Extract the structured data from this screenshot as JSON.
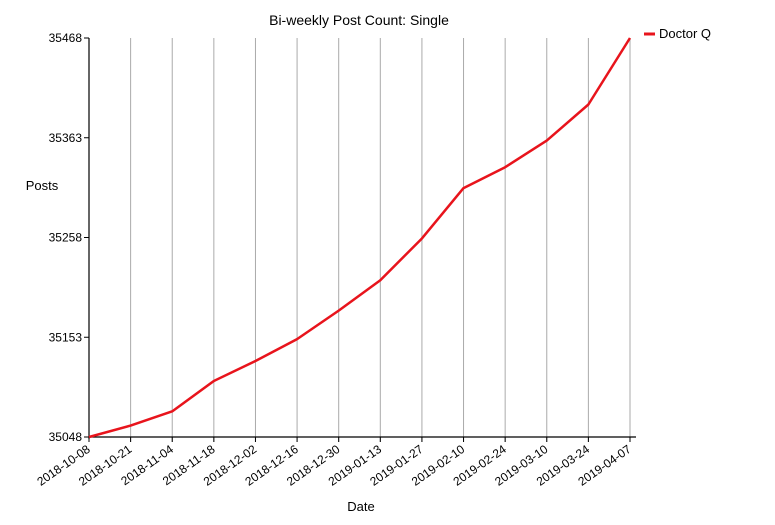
{
  "chart_data": {
    "type": "line",
    "title": "Bi-weekly Post Count: Single",
    "xlabel": "Date",
    "ylabel": "Posts",
    "categories": [
      "2018-10-08",
      "2018-10-21",
      "2018-11-04",
      "2018-11-18",
      "2018-12-02",
      "2018-12-16",
      "2018-12-30",
      "2019-01-13",
      "2019-01-27",
      "2019-02-10",
      "2019-02-24",
      "2019-03-10",
      "2019-03-24",
      "2019-04-07"
    ],
    "yticks": [
      "35048",
      "35153",
      "35258",
      "35363",
      "35468"
    ],
    "ylim": [
      35048,
      35468
    ],
    "series": [
      {
        "name": "Doctor Q",
        "color": "#e8141c",
        "values": [
          35048,
          35060,
          35075,
          35107,
          35128,
          35151,
          35181,
          35213,
          35257,
          35310,
          35332,
          35360,
          35398,
          35468
        ]
      }
    ],
    "grid": "vertical",
    "legend": "top-right"
  }
}
